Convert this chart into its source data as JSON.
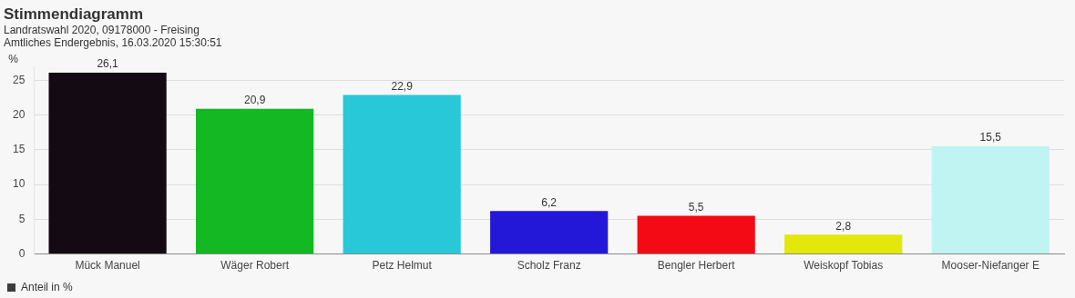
{
  "chart_data": {
    "type": "bar",
    "title": "Stimmendiagramm",
    "subtitle": "Landratswahl 2020, 09178000 - Freising\nAmtliches Endergebnis, 16.03.2020 15:30:51",
    "ylabel": "%",
    "categories": [
      "Mück Manuel",
      "Wäger Robert",
      "Petz Helmut",
      "Scholz Franz",
      "Bengler Herbert",
      "Weiskopf Tobias",
      "Mooser-Niefanger E"
    ],
    "series": [
      {
        "name": "Anteil in %",
        "color": "#3c3c3c",
        "colors": [
          "#130a13",
          "#13b823",
          "#28c8d8",
          "#2318d8",
          "#f40a14",
          "#e4e70c",
          "#bff4f2"
        ],
        "values": [
          26.1,
          20.9,
          22.9,
          6.2,
          5.5,
          2.8,
          15.5
        ],
        "value_labels": [
          "26,1",
          "20,9",
          "22,9",
          "6,2",
          "5,5",
          "2,8",
          "15,5"
        ]
      }
    ],
    "ylim": [
      0,
      27
    ],
    "yticks": [
      0,
      5,
      10,
      15,
      20,
      25
    ],
    "grid": "y",
    "legend": "bottom left"
  }
}
